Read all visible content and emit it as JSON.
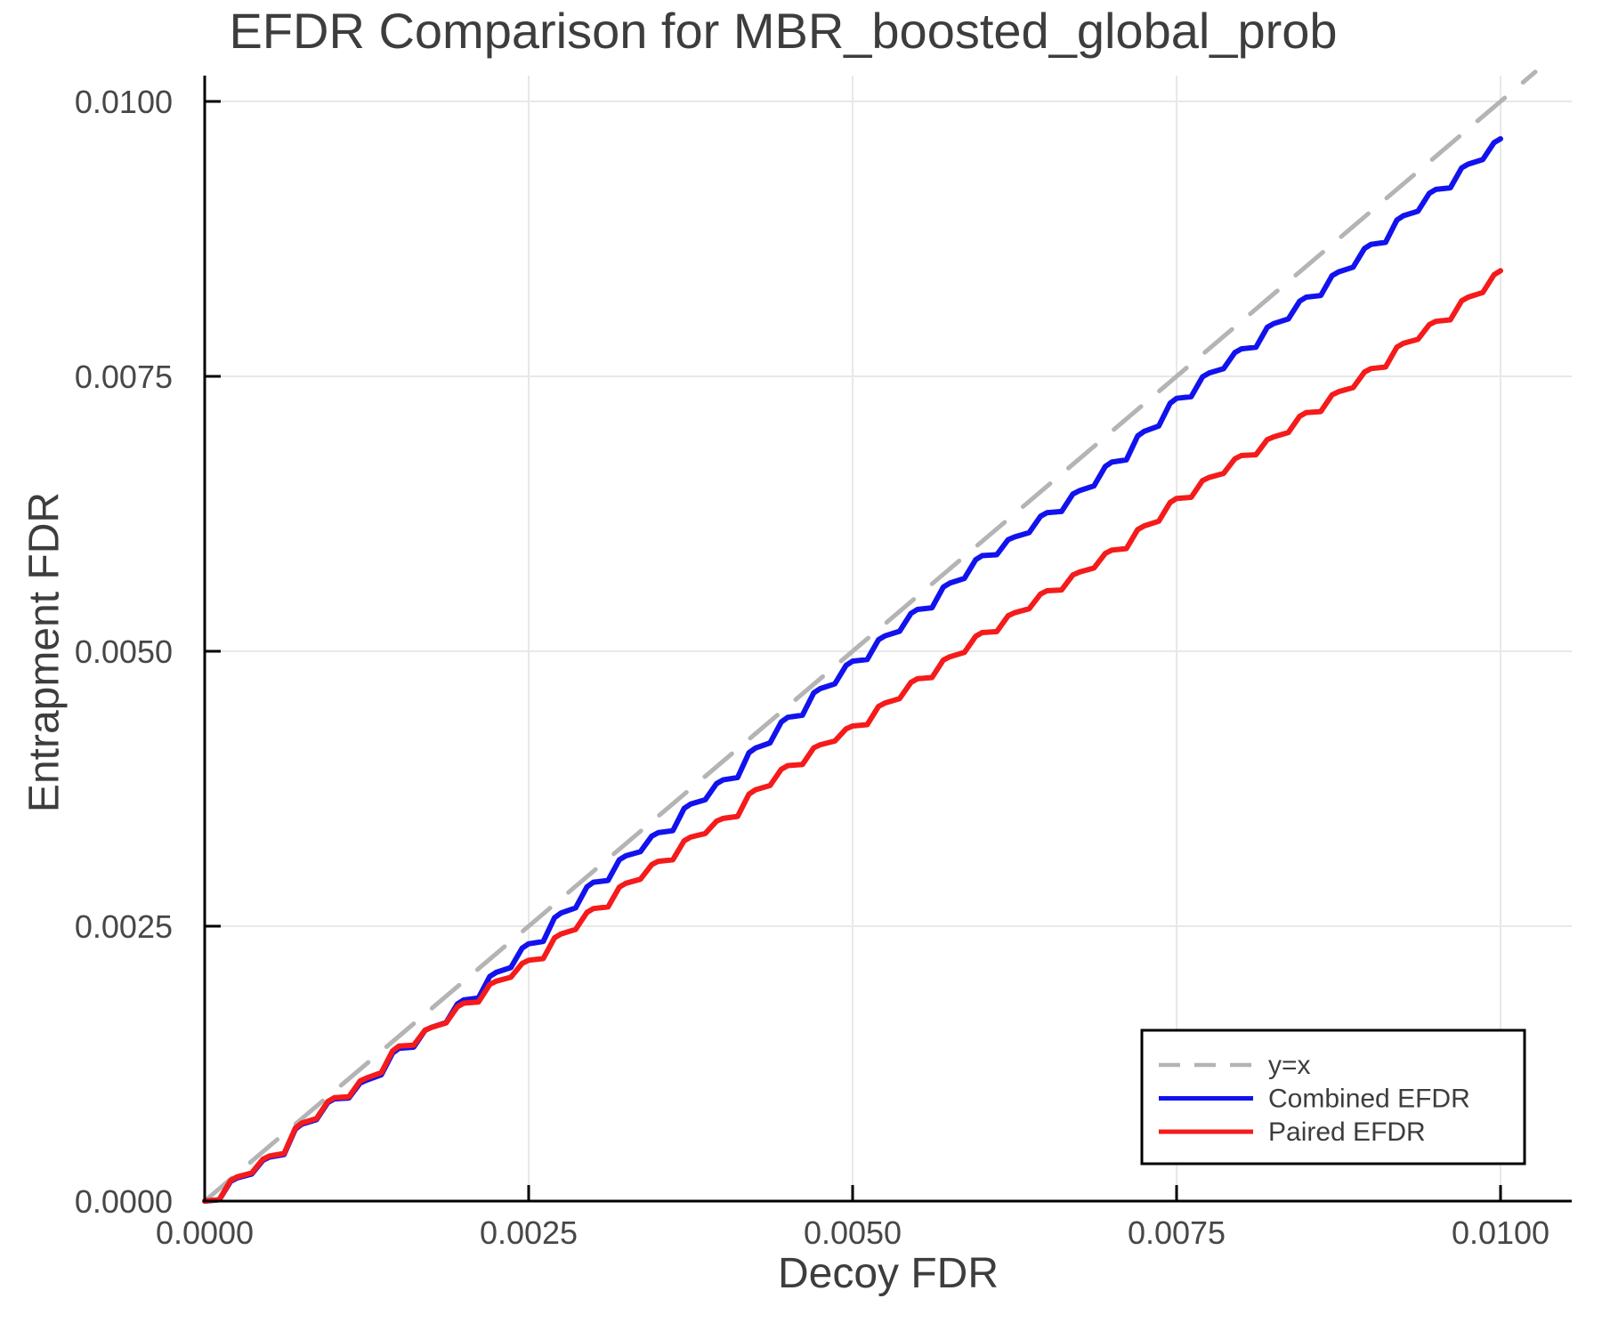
{
  "title": "EFDR Comparison for MBR_boosted_global_prob",
  "chart_data": {
    "type": "line",
    "title": "EFDR Comparison for MBR_boosted_global_prob",
    "xlabel": "Decoy FDR",
    "ylabel": "Entrapment FDR",
    "xlim": [
      0.0,
      0.01055
    ],
    "ylim": [
      0.0,
      0.01027
    ],
    "grid": true,
    "grid_color": "#e8e8e8",
    "spine_color": "#000000",
    "legend_position": "lower right",
    "x_ticks": {
      "values": [
        0.0,
        0.0025,
        0.005,
        0.0075,
        0.01
      ],
      "labels": [
        "0.0000",
        "0.0025",
        "0.0050",
        "0.0075",
        "0.0100"
      ]
    },
    "y_ticks": {
      "values": [
        0.0,
        0.0025,
        0.005,
        0.0075,
        0.01
      ],
      "labels": [
        "0.0000",
        "0.0025",
        "0.0050",
        "0.0075",
        "0.0100"
      ]
    },
    "series": [
      {
        "name": "y=x",
        "style": "dashed",
        "color": "#b4b4b4",
        "width": 5,
        "x": [
          0.0,
          0.010268
        ],
        "y": [
          0.0,
          0.010268
        ]
      },
      {
        "name": "Combined EFDR",
        "style": "solid",
        "color": "#1212ee",
        "width": 6,
        "x": [
          0.0,
          0.00025,
          0.0005,
          0.00075,
          0.001,
          0.00125,
          0.0015,
          0.00175,
          0.002,
          0.00225,
          0.0025,
          0.00275,
          0.003,
          0.00325,
          0.0035,
          0.00375,
          0.004,
          0.00425,
          0.0045,
          0.00475,
          0.005,
          0.00525,
          0.0055,
          0.00575,
          0.006,
          0.00625,
          0.0065,
          0.00675,
          0.007,
          0.00725,
          0.0075,
          0.00775,
          0.008,
          0.00825,
          0.0085,
          0.00875,
          0.009,
          0.00925,
          0.0095,
          0.00975,
          0.01
        ],
        "y": [
          0.0,
          0.00021,
          0.0004,
          0.0007,
          0.00093,
          0.0011,
          0.00139,
          0.00158,
          0.00183,
          0.00208,
          0.00234,
          0.00262,
          0.0029,
          0.00314,
          0.00335,
          0.00361,
          0.00383,
          0.00412,
          0.0044,
          0.00466,
          0.00491,
          0.00514,
          0.00538,
          0.00562,
          0.00587,
          0.00604,
          0.00626,
          0.00646,
          0.00672,
          0.007,
          0.0073,
          0.00753,
          0.00775,
          0.00798,
          0.00822,
          0.00845,
          0.0087,
          0.00896,
          0.0092,
          0.00943,
          0.00966
        ]
      },
      {
        "name": "Paired EFDR",
        "style": "solid",
        "color": "#f51b1b",
        "width": 6,
        "x": [
          0.0,
          0.00025,
          0.0005,
          0.00075,
          0.001,
          0.00125,
          0.0015,
          0.00175,
          0.002,
          0.00225,
          0.0025,
          0.00275,
          0.003,
          0.00325,
          0.0035,
          0.00375,
          0.004,
          0.00425,
          0.0045,
          0.00475,
          0.005,
          0.00525,
          0.0055,
          0.00575,
          0.006,
          0.00625,
          0.0065,
          0.00675,
          0.007,
          0.00725,
          0.0075,
          0.00775,
          0.008,
          0.00825,
          0.0085,
          0.00875,
          0.009,
          0.00925,
          0.0095,
          0.00975,
          0.01
        ],
        "y": [
          0.0,
          0.00022,
          0.00041,
          0.00071,
          0.00094,
          0.00112,
          0.00141,
          0.00158,
          0.0018,
          0.002,
          0.00219,
          0.00243,
          0.00266,
          0.00289,
          0.00309,
          0.00331,
          0.00348,
          0.00374,
          0.00396,
          0.00415,
          0.00432,
          0.00453,
          0.00475,
          0.00495,
          0.00517,
          0.00535,
          0.00555,
          0.00572,
          0.00592,
          0.00614,
          0.00639,
          0.00658,
          0.00678,
          0.00695,
          0.00717,
          0.00736,
          0.00757,
          0.0078,
          0.008,
          0.00822,
          0.00846
        ]
      }
    ]
  }
}
